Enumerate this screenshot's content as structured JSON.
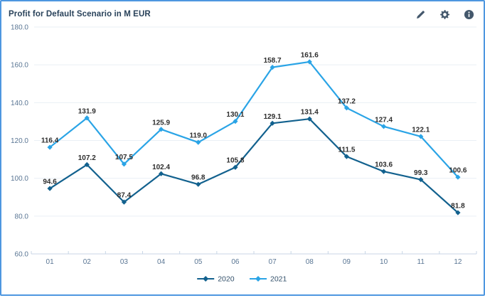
{
  "card": {
    "title": "Profit for Default Scenario in M EUR",
    "toolbar": {
      "edit_label": "Edit",
      "settings_label": "Settings",
      "info_label": "Information"
    }
  },
  "colors": {
    "card_border": "#4e97e0",
    "title_text": "#29425a",
    "icon": "#44586c",
    "axis_text": "#5a7694",
    "data_label": "#2d2d2d",
    "gridline": "#eaeff5",
    "axis_line": "#c8d6e6"
  },
  "chart_data": {
    "type": "line",
    "title": "Profit for Default Scenario in M EUR",
    "unit": "M EUR",
    "categories": [
      "01",
      "02",
      "03",
      "04",
      "05",
      "06",
      "07",
      "08",
      "09",
      "10",
      "11",
      "12"
    ],
    "series": [
      {
        "name": "2020",
        "color": "#12618e",
        "values": [
          94.6,
          107.2,
          87.4,
          102.4,
          96.8,
          105.8,
          129.1,
          131.4,
          111.5,
          103.6,
          99.3,
          81.8
        ]
      },
      {
        "name": "2021",
        "color": "#2aa4e6",
        "values": [
          116.4,
          131.9,
          107.5,
          125.9,
          119.0,
          130.1,
          158.7,
          161.6,
          137.2,
          127.4,
          122.1,
          100.6
        ]
      }
    ],
    "ylim": [
      60,
      180
    ],
    "ytick_interval": 20,
    "ytick_format_decimals": 1,
    "grid": true,
    "data_labels": true,
    "legend_position": "bottom"
  }
}
